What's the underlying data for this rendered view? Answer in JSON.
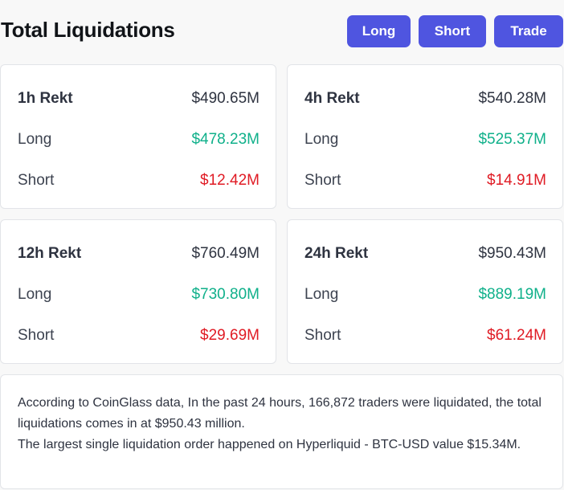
{
  "header": {
    "title": "Total Liquidations",
    "buttons": {
      "long": "Long",
      "short": "Short",
      "trade": "Trade"
    }
  },
  "cards": {
    "h1": {
      "label": "1h Rekt",
      "total": "$490.65M",
      "long_label": "Long",
      "long": "$478.23M",
      "short_label": "Short",
      "short": "$12.42M"
    },
    "h4": {
      "label": "4h Rekt",
      "total": "$540.28M",
      "long_label": "Long",
      "long": "$525.37M",
      "short_label": "Short",
      "short": "$14.91M"
    },
    "h12": {
      "label": "12h Rekt",
      "total": "$760.49M",
      "long_label": "Long",
      "long": "$730.80M",
      "short_label": "Short",
      "short": "$29.69M"
    },
    "h24": {
      "label": "24h Rekt",
      "total": "$950.43M",
      "long_label": "Long",
      "long": "$889.19M",
      "short_label": "Short",
      "short": "$61.24M"
    }
  },
  "colors": {
    "accent": "#4f55e0",
    "long": "#0fb08a",
    "short": "#e01b24"
  },
  "summary": {
    "line1": "According to CoinGlass data, In the past 24 hours, 166,872 traders were liquidated, the total liquidations comes in at $950.43 million.",
    "line2": "The largest single liquidation order happened on Hyperliquid - BTC-USD value $15.34M."
  }
}
